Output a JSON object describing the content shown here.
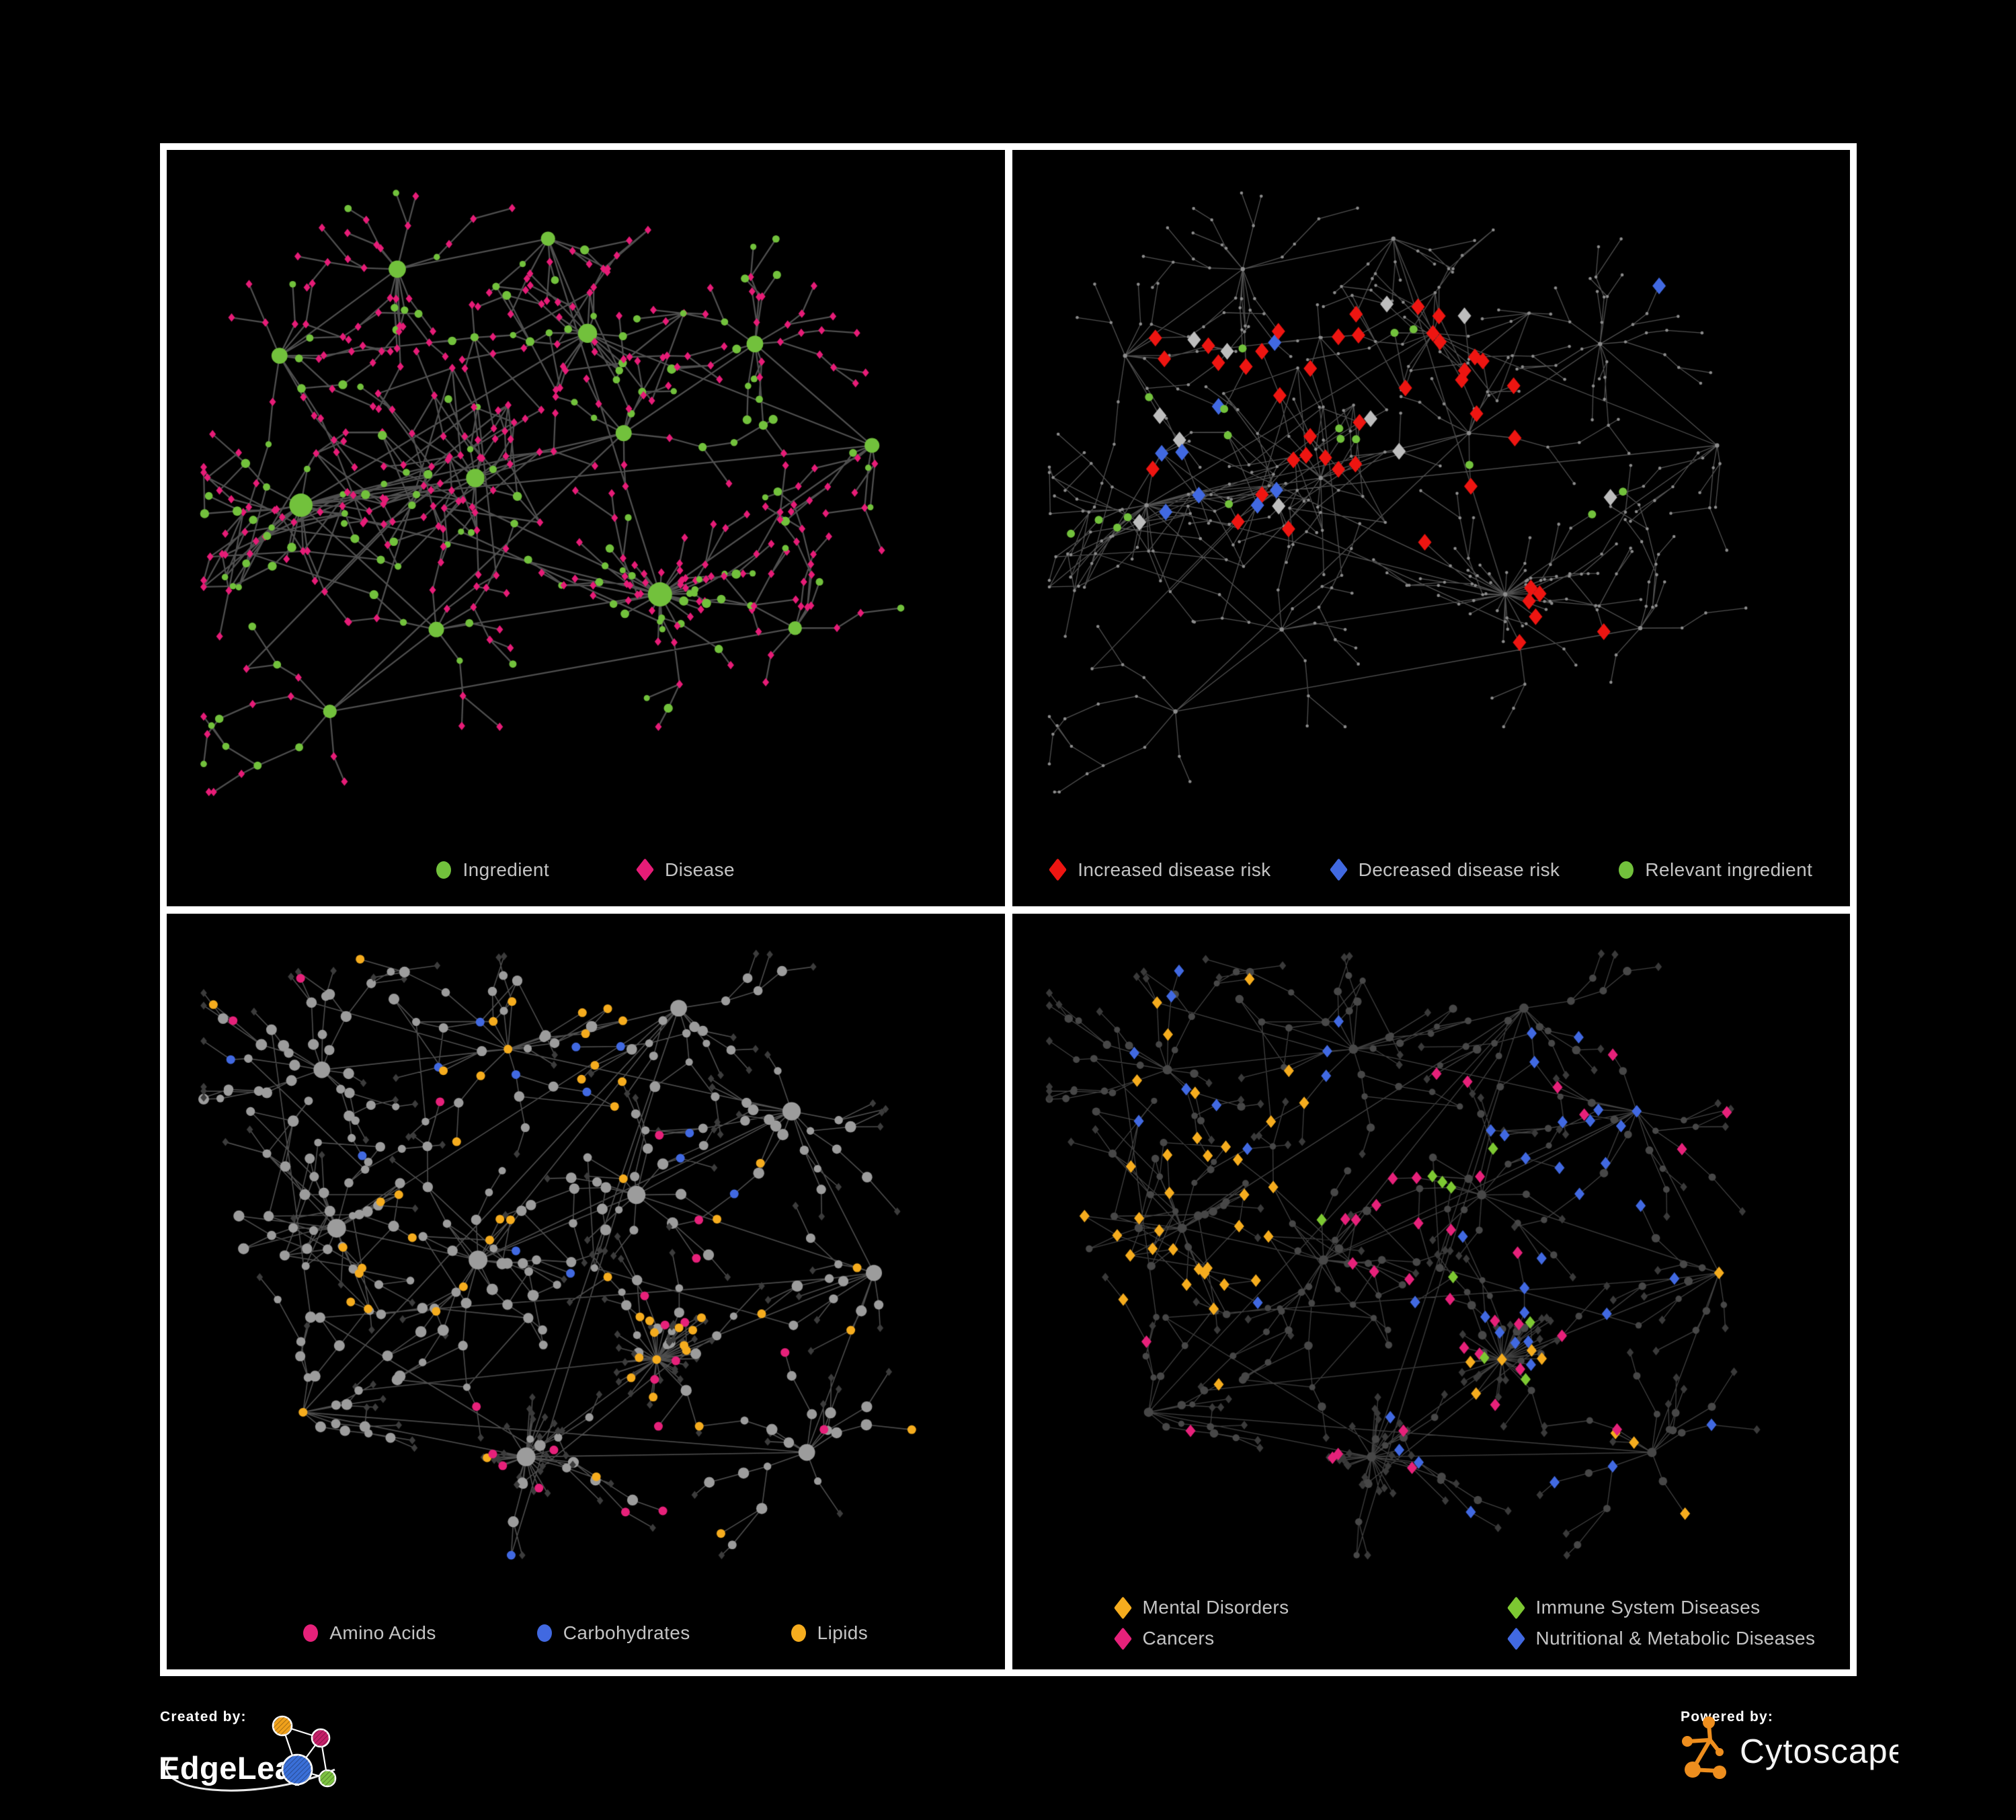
{
  "page": {
    "background": "#000000",
    "frame_color": "#FFFFFF"
  },
  "panels": [
    {
      "title": "ingredient-disease network",
      "legend": [
        {
          "label": "Ingredient",
          "shape": "circle",
          "color": "#72C13C"
        },
        {
          "label": "Disease",
          "shape": "diamond",
          "color": "#E61C77"
        }
      ]
    },
    {
      "title": "disease risk network",
      "legend": [
        {
          "label": "Increased disease risk",
          "shape": "diamond",
          "color": "#EE1511"
        },
        {
          "label": "Decreased disease risk",
          "shape": "diamond",
          "color": "#4169E1"
        },
        {
          "label": "Relevant ingredient",
          "shape": "circle",
          "color": "#72C13C"
        }
      ]
    },
    {
      "title": "macronutrient network",
      "legend": [
        {
          "label": "Amino Acids",
          "shape": "circle",
          "color": "#E6217A"
        },
        {
          "label": "Carbohydrates",
          "shape": "circle",
          "color": "#4169E1"
        },
        {
          "label": "Lipids",
          "shape": "circle",
          "color": "#F5AC1E"
        }
      ]
    },
    {
      "title": "disease classes network",
      "legend": [
        {
          "label": "Mental Disorders",
          "shape": "diamond",
          "color": "#F5AC1E"
        },
        {
          "label": "Immune System Diseases",
          "shape": "diamond",
          "color": "#7DC832"
        },
        {
          "label": "Cancers",
          "shape": "diamond",
          "color": "#E6217A"
        },
        {
          "label": "Nutritional & Metabolic Diseases",
          "shape": "diamond",
          "color": "#4169E1"
        }
      ]
    }
  ],
  "footer": {
    "created_by": "Created by:",
    "brand": "EdgeLeap",
    "powered_by": "Powered by:",
    "engine": "Cytoscape",
    "edgeleap_colors": {
      "orange": "#F0A11B",
      "magenta": "#C52069",
      "blue": "#3A6FD8",
      "green": "#7DC242"
    },
    "cytoscape_orange": "#EE8E1E"
  },
  "chart_data": [
    {
      "type": "network",
      "name": "ingredient_disease",
      "seed": 20177,
      "style_seed": 11,
      "base": "tl",
      "margins": [
        55,
        40,
        55,
        170
      ],
      "edge": {
        "color": "#6A6A6A",
        "width": 2.3,
        "alpha": 0.75
      },
      "palette": {
        "green": "#72C13C",
        "magenta": "#E61C77"
      },
      "clusters": [
        {
          "x": 0.1,
          "y": 0.28,
          "s": 1.0
        },
        {
          "x": 0.26,
          "y": 0.15,
          "s": 0.9
        },
        {
          "x": 0.45,
          "y": 0.1,
          "s": 0.8
        },
        {
          "x": 0.5,
          "y": 0.25,
          "s": 1.3,
          "dense": true
        },
        {
          "x": 0.13,
          "y": 0.52,
          "s": 1.4,
          "dense": true
        },
        {
          "x": 0.36,
          "y": 0.5,
          "s": 1.5,
          "dense": true
        },
        {
          "x": 0.55,
          "y": 0.42,
          "s": 1.1
        },
        {
          "x": 0.73,
          "y": 0.26,
          "s": 1.0
        },
        {
          "x": 0.88,
          "y": 0.44,
          "s": 0.7
        },
        {
          "x": 0.6,
          "y": 0.68,
          "s": 1.0,
          "burst": true
        },
        {
          "x": 0.3,
          "y": 0.75,
          "s": 0.9
        },
        {
          "x": 0.17,
          "y": 0.88,
          "s": 0.6
        },
        {
          "x": 0.78,
          "y": 0.74,
          "s": 0.7
        }
      ]
    },
    {
      "type": "network",
      "name": "disease_risk",
      "seed": 20177,
      "style_seed": 22,
      "base": "tr",
      "margins": [
        55,
        40,
        55,
        170
      ],
      "edge": {
        "color": "#5E5E5E",
        "width": 1.3,
        "alpha": 0.85
      },
      "palette": {
        "gray": "#8C8C8C",
        "red": "#EE1511",
        "blue": "#4169E1",
        "grayd": "#BDBDBD",
        "green": "#72C13C"
      },
      "clusters": [
        {
          "x": 0.1,
          "y": 0.28,
          "s": 1.0
        },
        {
          "x": 0.26,
          "y": 0.15,
          "s": 0.9
        },
        {
          "x": 0.45,
          "y": 0.1,
          "s": 0.8
        },
        {
          "x": 0.5,
          "y": 0.25,
          "s": 1.3,
          "dense": true
        },
        {
          "x": 0.13,
          "y": 0.52,
          "s": 1.4,
          "dense": true
        },
        {
          "x": 0.36,
          "y": 0.5,
          "s": 1.5,
          "dense": true
        },
        {
          "x": 0.55,
          "y": 0.42,
          "s": 1.1
        },
        {
          "x": 0.73,
          "y": 0.26,
          "s": 1.0
        },
        {
          "x": 0.88,
          "y": 0.44,
          "s": 0.7
        },
        {
          "x": 0.6,
          "y": 0.68,
          "s": 1.0,
          "burst": true
        },
        {
          "x": 0.3,
          "y": 0.75,
          "s": 0.9
        },
        {
          "x": 0.17,
          "y": 0.88,
          "s": 0.6
        },
        {
          "x": 0.78,
          "y": 0.74,
          "s": 0.7
        }
      ],
      "zones": [
        {
          "x0": 0.05,
          "x1": 0.3,
          "y0": 0.25,
          "y1": 0.58,
          "p": {
            "blue": 0.1,
            "red": 0.08,
            "grayd": 0.05,
            "green": 0.1
          }
        },
        {
          "x0": 0.3,
          "x1": 0.62,
          "y0": 0.18,
          "y1": 0.62,
          "p": {
            "red": 0.13,
            "green": 0.1,
            "grayd": 0.05
          }
        },
        {
          "x0": 0.62,
          "x1": 0.82,
          "y0": 0.28,
          "y1": 0.62,
          "p": {
            "red": 0.06,
            "grayd": 0.03,
            "green": 0.04
          }
        },
        {
          "x0": 0.6,
          "x1": 0.86,
          "y0": 0.66,
          "y1": 0.9,
          "p": {
            "red": 0.1
          }
        },
        {
          "x0": 0.0,
          "x1": 0.12,
          "y0": 0.3,
          "y1": 0.6,
          "p": {
            "red": 0.05,
            "green": 0.06
          }
        }
      ],
      "forced": [
        {
          "x": 0.86,
          "y": 0.16,
          "k": "blue"
        },
        {
          "x": 0.9,
          "y": 0.15,
          "k": "blue"
        }
      ]
    },
    {
      "type": "network",
      "name": "macronutrients",
      "seed": 99331,
      "style_seed": 33,
      "base": "bl",
      "margins": [
        55,
        40,
        55,
        170
      ],
      "edge": {
        "color": "#9A9A9A",
        "width": 1.6,
        "alpha": 0.5
      },
      "palette": {
        "gray": "#9C9C9C",
        "dark": "#3C3C3C",
        "orange": "#F5AC1E",
        "blue": "#4169E1",
        "pink": "#E6217A"
      },
      "clusters": [
        {
          "x": 0.16,
          "y": 0.2,
          "s": 0.9
        },
        {
          "x": 0.4,
          "y": 0.18,
          "s": 1.3,
          "dense": true
        },
        {
          "x": 0.62,
          "y": 0.1,
          "s": 0.7
        },
        {
          "x": 0.17,
          "y": 0.47,
          "s": 1.5,
          "dense": true
        },
        {
          "x": 0.35,
          "y": 0.53,
          "s": 1.4,
          "dense": true
        },
        {
          "x": 0.56,
          "y": 0.4,
          "s": 1.0
        },
        {
          "x": 0.78,
          "y": 0.28,
          "s": 0.9
        },
        {
          "x": 0.88,
          "y": 0.55,
          "s": 0.7
        },
        {
          "x": 0.6,
          "y": 0.67,
          "s": 1.1,
          "burst": true
        },
        {
          "x": 0.42,
          "y": 0.85,
          "s": 0.8,
          "burst": true
        },
        {
          "x": 0.12,
          "y": 0.76,
          "s": 0.8
        },
        {
          "x": 0.8,
          "y": 0.82,
          "s": 0.7
        }
      ],
      "zones": [
        {
          "x0": 0.33,
          "x1": 0.55,
          "y0": 0.08,
          "y1": 0.34,
          "p": {
            "orange": 0.42,
            "blue": 0.16
          }
        },
        {
          "x0": 0.15,
          "x1": 0.48,
          "y0": 0.38,
          "y1": 0.62,
          "p": {
            "orange": 0.2,
            "blue": 0.03
          }
        },
        {
          "x0": 0.5,
          "x1": 0.75,
          "y0": 0.55,
          "y1": 0.8,
          "p": {
            "orange": 0.16,
            "pink": 0.07
          }
        },
        {
          "x0": 0.55,
          "x1": 0.92,
          "y0": 0.26,
          "y1": 0.55,
          "p": {
            "orange": 0.08,
            "pink": 0.1,
            "blue": 0.04
          }
        },
        {
          "x0": 0.05,
          "x1": 0.3,
          "y0": 0.62,
          "y1": 0.93,
          "p": {
            "pink": 0.07,
            "orange": 0.05
          }
        },
        {
          "x0": 0.3,
          "x1": 0.62,
          "y0": 0.7,
          "y1": 0.96,
          "p": {
            "pink": 0.11,
            "orange": 0.05
          }
        },
        {
          "x0": 0.0,
          "x1": 1.0,
          "y0": 0.0,
          "y1": 1.0,
          "p": {
            "orange": 0.04,
            "pink": 0.02,
            "blue": 0.015
          }
        }
      ]
    },
    {
      "type": "network",
      "name": "disease_classes",
      "seed": 99331,
      "style_seed": 44,
      "base": "br",
      "margins": [
        55,
        40,
        55,
        170
      ],
      "edge": {
        "color": "#6A6A6A",
        "width": 1.3,
        "alpha": 0.6
      },
      "palette": {
        "dark": "#3A3A3A",
        "dark2": "#474747",
        "orange": "#F5AC1E",
        "blue": "#4169E1",
        "pink": "#E6217A",
        "green": "#7DC832"
      },
      "clusters": [
        {
          "x": 0.16,
          "y": 0.2,
          "s": 0.9
        },
        {
          "x": 0.4,
          "y": 0.18,
          "s": 1.3,
          "dense": true
        },
        {
          "x": 0.62,
          "y": 0.1,
          "s": 0.7
        },
        {
          "x": 0.17,
          "y": 0.47,
          "s": 1.5,
          "dense": true
        },
        {
          "x": 0.35,
          "y": 0.53,
          "s": 1.4,
          "dense": true
        },
        {
          "x": 0.56,
          "y": 0.4,
          "s": 1.0
        },
        {
          "x": 0.78,
          "y": 0.28,
          "s": 0.9
        },
        {
          "x": 0.88,
          "y": 0.55,
          "s": 0.7
        },
        {
          "x": 0.6,
          "y": 0.67,
          "s": 1.1,
          "burst": true
        },
        {
          "x": 0.42,
          "y": 0.85,
          "s": 0.8,
          "burst": true
        },
        {
          "x": 0.12,
          "y": 0.76,
          "s": 0.8
        },
        {
          "x": 0.8,
          "y": 0.82,
          "s": 0.7
        }
      ],
      "zones": [
        {
          "x0": 0.02,
          "x1": 0.3,
          "y0": 0.34,
          "y1": 0.62,
          "p": {
            "orange": 0.45,
            "blue": 0.03
          }
        },
        {
          "x0": 0.05,
          "x1": 0.38,
          "y0": 0.03,
          "y1": 0.34,
          "p": {
            "orange": 0.13,
            "blue": 0.1
          }
        },
        {
          "x0": 0.34,
          "x1": 0.62,
          "y0": 0.26,
          "y1": 0.62,
          "p": {
            "pink": 0.26,
            "green": 0.05,
            "blue": 0.05
          }
        },
        {
          "x0": 0.62,
          "x1": 0.96,
          "y0": 0.1,
          "y1": 0.35,
          "p": {
            "blue": 0.17,
            "pink": 0.12
          }
        },
        {
          "x0": 0.58,
          "x1": 0.82,
          "y0": 0.35,
          "y1": 0.62,
          "p": {
            "blue": 0.22,
            "green": 0.03
          }
        },
        {
          "x0": 0.28,
          "x1": 0.8,
          "y0": 0.62,
          "y1": 0.93,
          "p": {
            "blue": 0.08,
            "pink": 0.07,
            "orange": 0.06,
            "green": 0.03
          }
        },
        {
          "x0": 0.0,
          "x1": 1.0,
          "y0": 0.0,
          "y1": 1.0,
          "p": {
            "blue": 0.03,
            "pink": 0.02,
            "orange": 0.02
          }
        }
      ]
    }
  ]
}
